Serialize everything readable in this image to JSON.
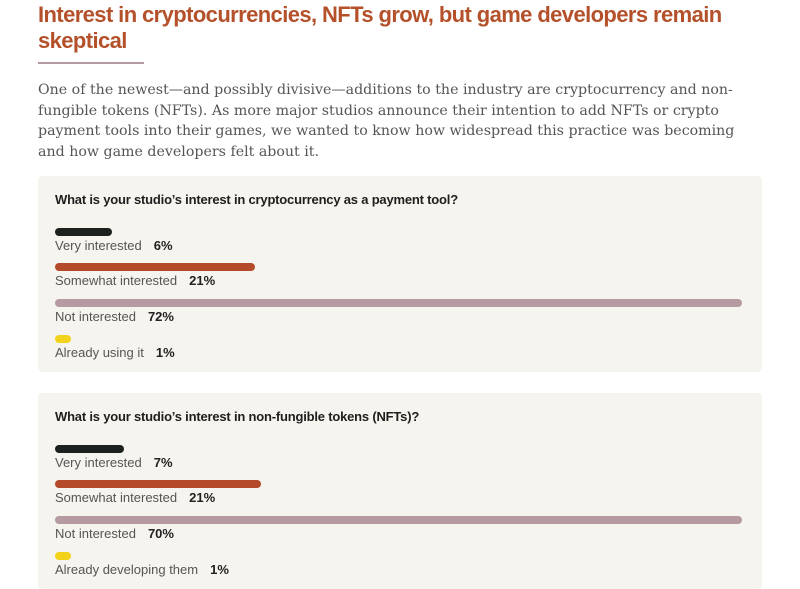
{
  "title": "Interest in cryptocurrencies, NFTs grow, but game developers remain skeptical",
  "intro": "One of the newest—and possibly divisive—additions to the industry are cryptocurrency and non-fungible tokens (NFTs). As more major studios announce their intention to add NFTs or crypto payment tools into their games, we wanted to know how widespread this practice was becoming and how game developers felt about it.",
  "colors": {
    "title": "#b4512b",
    "very": "#1c211e",
    "somewhat": "#b44a2a",
    "not": "#b59ba1",
    "already": "#f2d21a",
    "card": "#f6f4ee"
  },
  "chart_data": [
    {
      "type": "bar",
      "orientation": "horizontal",
      "title": "What is your studio’s interest in cryptocurrency as a payment tool?",
      "categories": [
        "Very interested",
        "Somewhat interested",
        "Not interested",
        "Already using it"
      ],
      "values": [
        6,
        21,
        72,
        1
      ],
      "labels": [
        "6%",
        "21%",
        "72%",
        "1%"
      ],
      "unit": "%"
    },
    {
      "type": "bar",
      "orientation": "horizontal",
      "title": "What is your studio’s interest in non-fungible tokens (NFTs)?",
      "categories": [
        "Very interested",
        "Somewhat interested",
        "Not interested",
        "Already developing them"
      ],
      "values": [
        7,
        21,
        70,
        1
      ],
      "labels": [
        "7%",
        "21%",
        "70%",
        "1%"
      ],
      "unit": "%"
    }
  ]
}
